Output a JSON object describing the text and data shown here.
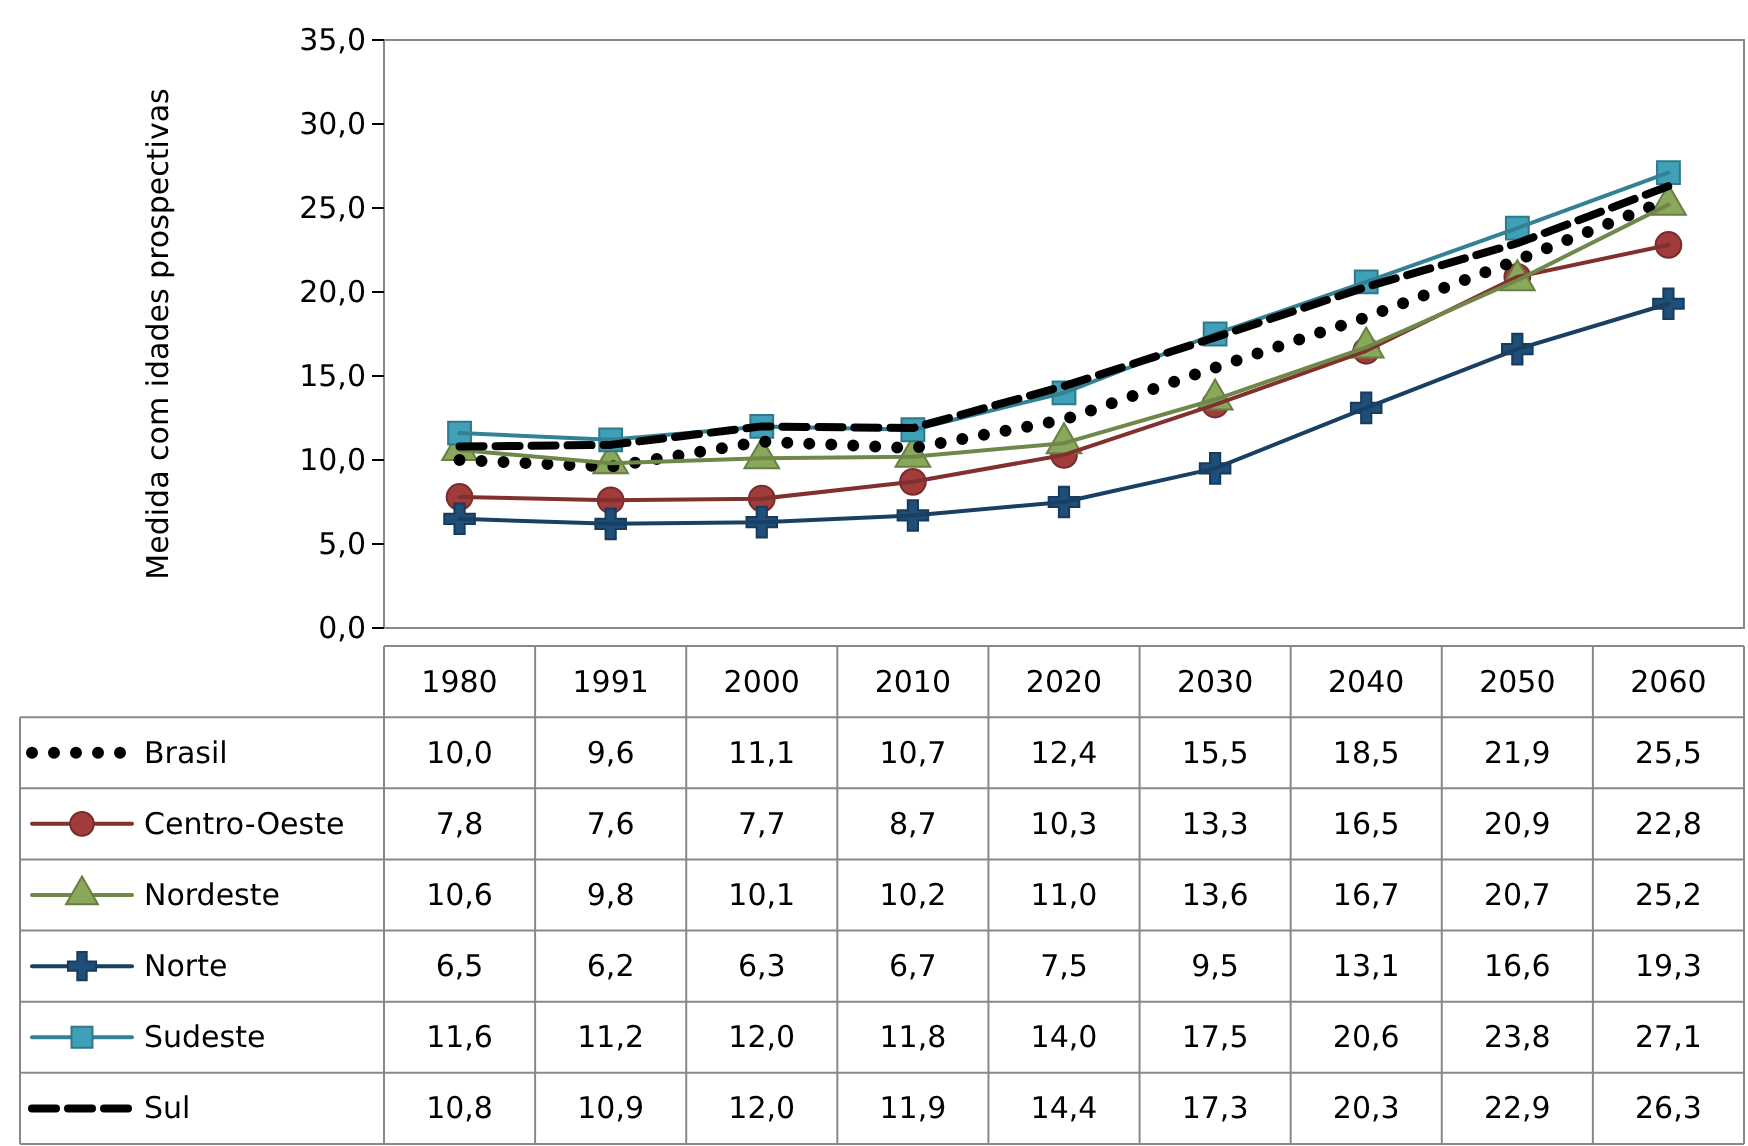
{
  "chart_data": {
    "type": "line",
    "ylabel": "Medida com idades prospectivas",
    "categories": [
      "1980",
      "1991",
      "2000",
      "2010",
      "2020",
      "2030",
      "2040",
      "2050",
      "2060"
    ],
    "ylim": [
      0,
      35
    ],
    "yticks": [
      {
        "value": 0,
        "label": "0,0"
      },
      {
        "value": 5,
        "label": "5,0"
      },
      {
        "value": 10,
        "label": "10,0"
      },
      {
        "value": 15,
        "label": "15,0"
      },
      {
        "value": 20,
        "label": "20,0"
      },
      {
        "value": 25,
        "label": "25,0"
      },
      {
        "value": 30,
        "label": "30,0"
      },
      {
        "value": 35,
        "label": "35,0"
      }
    ],
    "legend": "bottom",
    "series": [
      {
        "name": "Brasil",
        "color": "#000000",
        "marker": "none",
        "line_style": "dotted",
        "values": [
          10.0,
          9.6,
          11.1,
          10.7,
          12.4,
          15.5,
          18.5,
          21.9,
          25.5
        ],
        "value_labels": [
          "10,0",
          "9,6",
          "11,1",
          "10,7",
          "12,4",
          "15,5",
          "18,5",
          "21,9",
          "25,5"
        ]
      },
      {
        "name": "Centro-Oeste",
        "color": "#a03c3a",
        "marker": "circle",
        "line_style": "solid",
        "values": [
          7.8,
          7.6,
          7.7,
          8.7,
          10.3,
          13.3,
          16.5,
          20.9,
          22.8
        ],
        "value_labels": [
          "7,8",
          "7,6",
          "7,7",
          "8,7",
          "10,3",
          "13,3",
          "16,5",
          "20,9",
          "22,8"
        ]
      },
      {
        "name": "Nordeste",
        "color": "#8aa85a",
        "marker": "triangle",
        "line_style": "solid",
        "values": [
          10.6,
          9.8,
          10.1,
          10.2,
          11.0,
          13.6,
          16.7,
          20.7,
          25.2
        ],
        "value_labels": [
          "10,6",
          "9,8",
          "10,1",
          "10,2",
          "11,0",
          "13,6",
          "16,7",
          "20,7",
          "25,2"
        ]
      },
      {
        "name": "Norte",
        "color": "#1f4e79",
        "marker": "cross",
        "line_style": "solid",
        "values": [
          6.5,
          6.2,
          6.3,
          6.7,
          7.5,
          9.5,
          13.1,
          16.6,
          19.3
        ],
        "value_labels": [
          "6,5",
          "6,2",
          "6,3",
          "6,7",
          "7,5",
          "9,5",
          "13,1",
          "16,6",
          "19,3"
        ]
      },
      {
        "name": "Sudeste",
        "color": "#3fa0b8",
        "marker": "square",
        "line_style": "solid",
        "values": [
          11.6,
          11.2,
          12.0,
          11.8,
          14.0,
          17.5,
          20.6,
          23.8,
          27.1
        ],
        "value_labels": [
          "11,6",
          "11,2",
          "12,0",
          "11,8",
          "14,0",
          "17,5",
          "20,6",
          "23,8",
          "27,1"
        ]
      },
      {
        "name": "Sul",
        "color": "#000000",
        "marker": "none",
        "line_style": "dashed",
        "values": [
          10.8,
          10.9,
          12.0,
          11.9,
          14.4,
          17.3,
          20.3,
          22.9,
          26.3
        ],
        "value_labels": [
          "10,8",
          "10,9",
          "12,0",
          "11,9",
          "14,4",
          "17,3",
          "20,3",
          "22,9",
          "26,3"
        ]
      }
    ]
  }
}
